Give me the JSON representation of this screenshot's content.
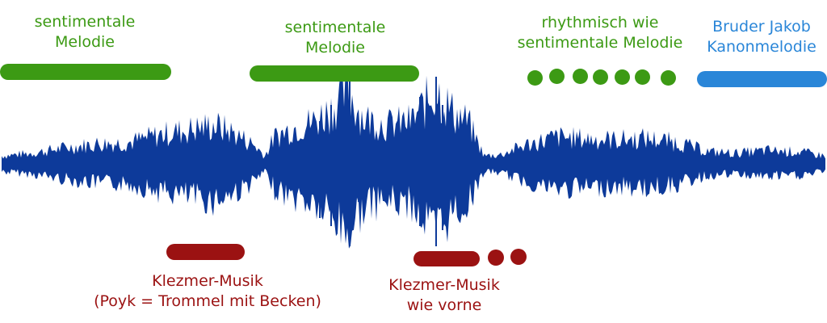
{
  "colors": {
    "green": "#3c9a14",
    "blue": "#2a86d8",
    "red": "#9b1212",
    "wave": "#0d3a9a"
  },
  "waveform": {
    "icon": "audio-waveform"
  },
  "annotations": [
    {
      "id": "sentimental-1",
      "color": "green",
      "lines": [
        "sentimentale",
        "Melodie"
      ],
      "marker": "bar"
    },
    {
      "id": "sentimental-2",
      "color": "green",
      "lines": [
        "sentimentale",
        "Melodie"
      ],
      "marker": "bar"
    },
    {
      "id": "rhythmic",
      "color": "green",
      "lines": [
        "rhythmisch wie",
        "sentimentale Melodie"
      ],
      "marker": "dots"
    },
    {
      "id": "bruder-jakob",
      "color": "blue",
      "lines": [
        "Bruder Jakob",
        "Kanonmelodie"
      ],
      "marker": "bar"
    },
    {
      "id": "klezmer-1",
      "color": "red",
      "lines": [
        "Klezmer-Musik",
        "(Poyk = Trommel mit Becken)"
      ],
      "marker": "bar"
    },
    {
      "id": "klezmer-2",
      "color": "red",
      "lines": [
        "Klezmer-Musik",
        "wie vorne"
      ],
      "marker": "bar-and-dots"
    }
  ]
}
